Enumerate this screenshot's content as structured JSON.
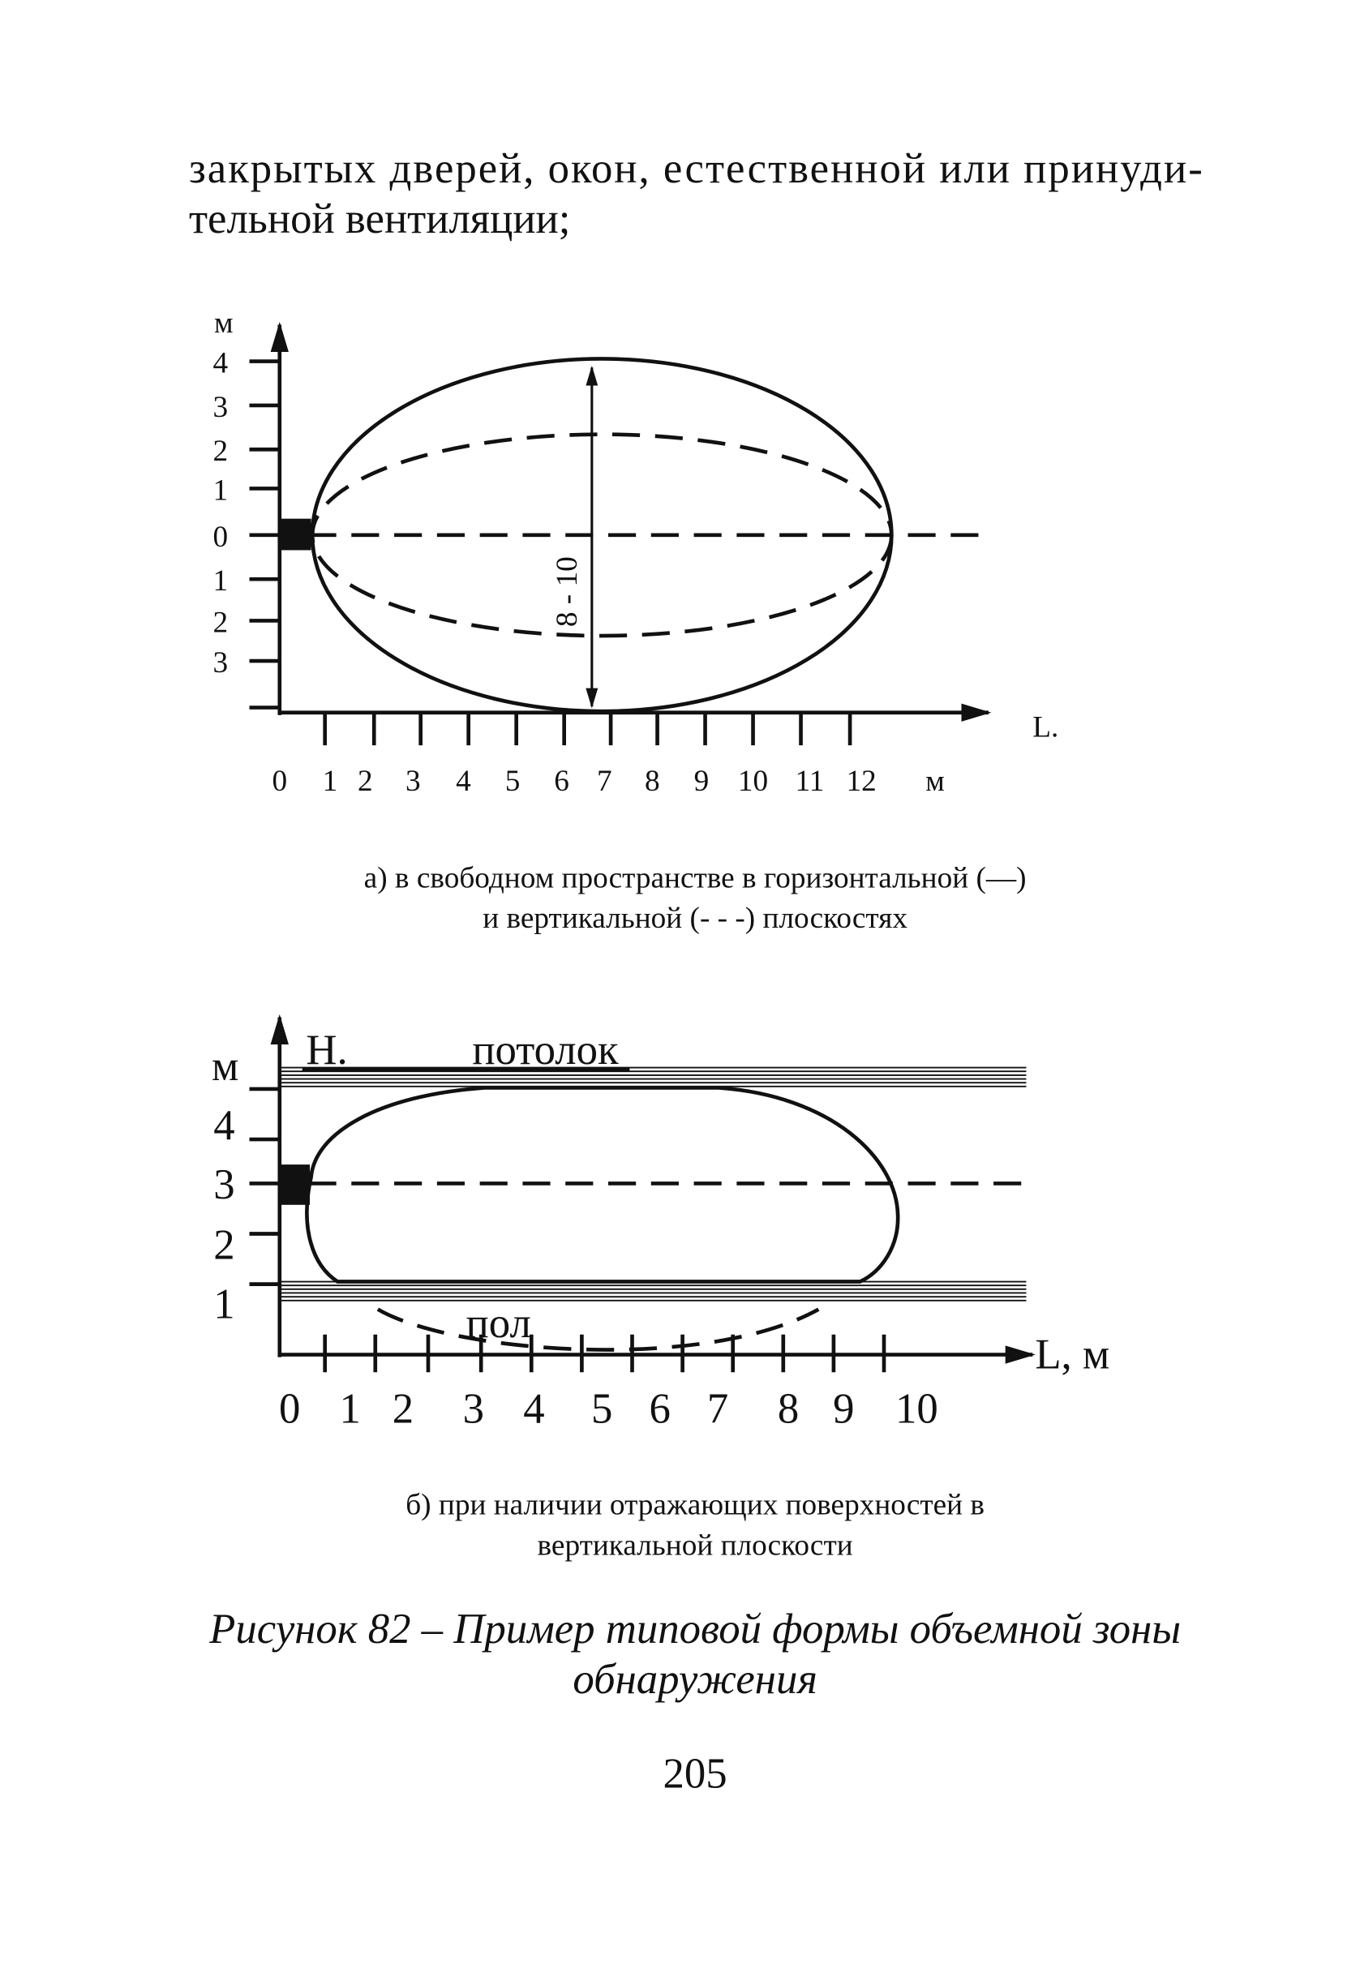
{
  "paragraph": [
    "закрытых дверей, окон, естественной или принуди-",
    "тельной вентиляции;"
  ],
  "figure_a": {
    "y_unit": "м",
    "y_labels": [
      "4",
      "3",
      "2",
      "1",
      "0",
      "1",
      "2",
      "3"
    ],
    "x_labels": [
      "0",
      "1",
      "2",
      "3",
      "4",
      "5",
      "6",
      "7",
      "8",
      "9",
      "10",
      "11",
      "12"
    ],
    "x_unit": "м",
    "axis_label": "L.",
    "dimension": "8 - 10",
    "caption": [
      "а) в свободном пространстве в горизонтальной (—)",
      "и вертикальной (- - -) плоскостях"
    ]
  },
  "figure_b": {
    "y_unit": "м",
    "y_labels": [
      "4",
      "3",
      "2",
      "1"
    ],
    "h_label": "Н.",
    "ceiling": "потолок",
    "floor": "пол",
    "x_labels": [
      "0",
      "1",
      "2",
      "3",
      "4",
      "5",
      "6",
      "7",
      "8",
      "9",
      "10"
    ],
    "axis_label": "L, м",
    "caption": [
      "б) при наличии отражающих поверхностей в",
      "вертикальной плоскости"
    ]
  },
  "figure_title": [
    "Рисунок 82 – Пример типовой формы объемной зоны",
    "обнаружения"
  ],
  "page_number": "205"
}
